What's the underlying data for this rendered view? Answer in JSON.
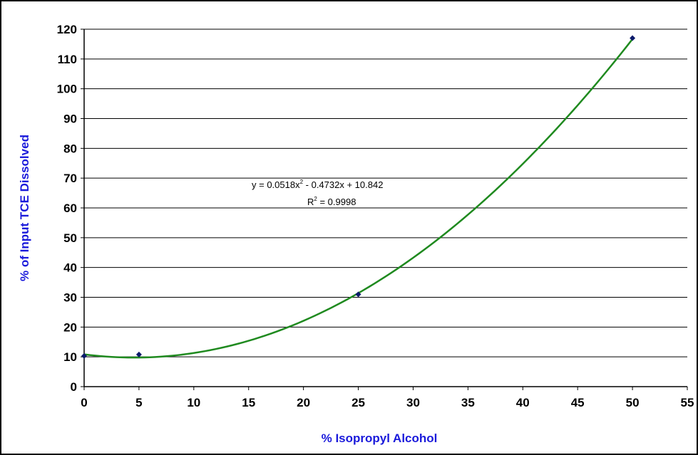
{
  "chart_data": {
    "type": "scatter",
    "title": "",
    "xlabel": "% Isopropyl Alcohol",
    "ylabel": "% of Input TCE Dissolved",
    "xlim": [
      0,
      55
    ],
    "ylim": [
      0,
      120
    ],
    "x_ticks": [
      0,
      5,
      10,
      15,
      20,
      25,
      30,
      35,
      40,
      45,
      50,
      55
    ],
    "y_ticks": [
      0,
      10,
      20,
      30,
      40,
      50,
      60,
      70,
      80,
      90,
      100,
      110,
      120
    ],
    "grid": "horizontal",
    "legend": "none",
    "series": [
      {
        "x": [
          0,
          5,
          25,
          50
        ],
        "y": [
          10.3,
          10.8,
          31,
          117
        ]
      }
    ],
    "trendline": {
      "type": "polynomial",
      "order": 2,
      "coefficients": [
        0.0518,
        -0.4732,
        10.842
      ],
      "x_range": [
        0,
        50
      ],
      "equation_label": "y = 0.0518x",
      "equation_sup": "2",
      "equation_rest": " - 0.4732x + 10.842",
      "r2_label": "R",
      "r2_sup": "2",
      "r2_rest": " = 0.9998"
    },
    "colors": {
      "axis_title": "#1a1adb",
      "trendline": "#1f8a1f",
      "marker": "#0b1a6b",
      "grid": "#000000"
    }
  }
}
